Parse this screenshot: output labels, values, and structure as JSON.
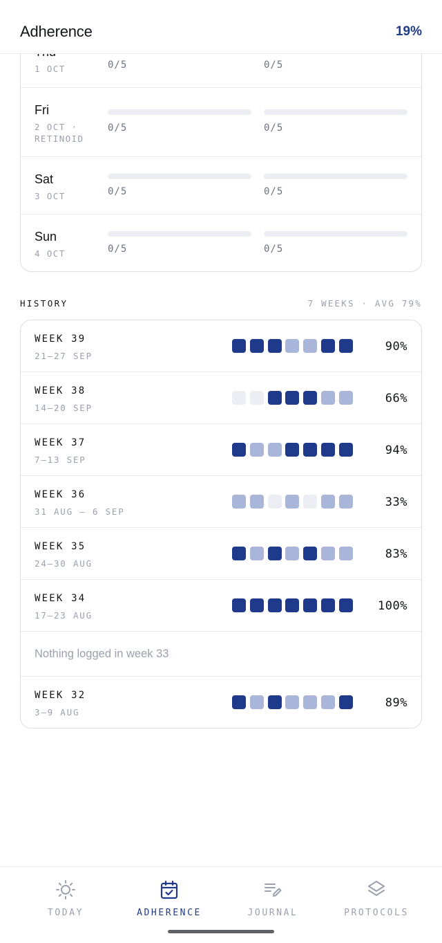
{
  "header": {
    "title": "Adherence",
    "overall_pct": "19%"
  },
  "days": [
    {
      "name": "Thu",
      "sub": "1 OCT",
      "col1": "0/5",
      "col2": "0/5"
    },
    {
      "name": "Fri",
      "sub": "2 OCT · RETINOID",
      "col1": "0/5",
      "col2": "0/5"
    },
    {
      "name": "Sat",
      "sub": "3 OCT",
      "col1": "0/5",
      "col2": "0/5"
    },
    {
      "name": "Sun",
      "sub": "4 OCT",
      "col1": "0/5",
      "col2": "0/5"
    }
  ],
  "history": {
    "label": "HISTORY",
    "meta": "7 WEEKS · AVG 79%",
    "weeks": [
      {
        "name": "WEEK 39",
        "range": "21–27 SEP",
        "pct": "90%"
      },
      {
        "name": "WEEK 38",
        "range": "14–20 SEP",
        "pct": "66%"
      },
      {
        "name": "WEEK 37",
        "range": "7–13 SEP",
        "pct": "94%"
      },
      {
        "name": "WEEK 36",
        "range": "31 AUG – 6 SEP",
        "pct": "33%"
      },
      {
        "name": "WEEK 35",
        "range": "24–30 AUG",
        "pct": "83%"
      },
      {
        "name": "WEEK 34",
        "range": "17–23 AUG",
        "pct": "100%"
      }
    ],
    "empty_text": "Nothing logged in week 33",
    "last_week": {
      "name": "WEEK 32",
      "range": "3–9 AUG",
      "pct": "89%"
    },
    "levels": [
      [
        2,
        2,
        2,
        1,
        1,
        2,
        2
      ],
      [
        0,
        0,
        2,
        2,
        2,
        1,
        1
      ],
      [
        2,
        1,
        1,
        2,
        2,
        2,
        2
      ],
      [
        1,
        1,
        0,
        1,
        0,
        1,
        1
      ],
      [
        2,
        1,
        2,
        1,
        2,
        1,
        1
      ],
      [
        2,
        2,
        2,
        2,
        2,
        2,
        2
      ],
      [
        2,
        1,
        2,
        1,
        1,
        1,
        2
      ]
    ]
  },
  "nav": {
    "items": [
      {
        "label": "TODAY",
        "icon": "sun-icon"
      },
      {
        "label": "ADHERENCE",
        "icon": "calendar-check-icon"
      },
      {
        "label": "JOURNAL",
        "icon": "journal-pen-icon"
      },
      {
        "label": "PROTOCOLS",
        "icon": "layers-icon"
      }
    ]
  },
  "colors": {
    "accent": "#1f3a8a",
    "partial": "#aab5da",
    "empty": "#eceef3"
  }
}
